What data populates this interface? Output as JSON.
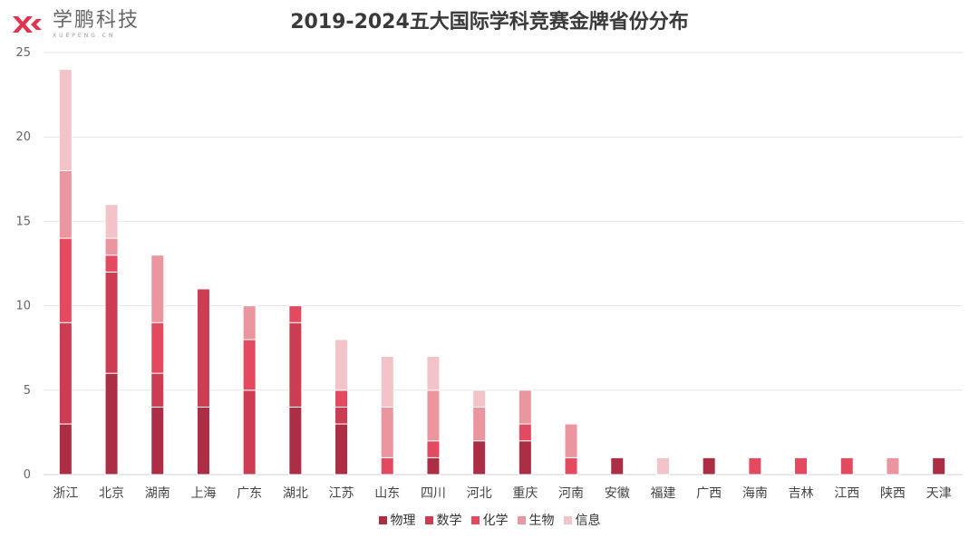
{
  "logo": {
    "brand_cn": "学鹏科技",
    "brand_en": "XUEPENG.CN"
  },
  "chart_data": {
    "type": "bar",
    "stacked": true,
    "title": "2019-2024五大国际学科竞赛金牌省份分布",
    "xlabel": "",
    "ylabel": "",
    "ylim": [
      0,
      25
    ],
    "yticks": [
      0,
      5,
      10,
      15,
      20,
      25
    ],
    "grid": true,
    "legend_position": "bottom",
    "categories": [
      "浙江",
      "北京",
      "湖南",
      "上海",
      "广东",
      "湖北",
      "江苏",
      "山东",
      "四川",
      "河北",
      "重庆",
      "河南",
      "安徽",
      "福建",
      "广西",
      "海南",
      "吉林",
      "江西",
      "陕西",
      "天津"
    ],
    "series": [
      {
        "name": "物理",
        "color": "#ab2e44",
        "values": [
          3,
          6,
          4,
          4,
          0,
          4,
          3,
          0,
          1,
          2,
          2,
          0,
          1,
          0,
          1,
          0,
          0,
          0,
          0,
          1
        ]
      },
      {
        "name": "数学",
        "color": "#cc3c52",
        "values": [
          6,
          6,
          2,
          7,
          5,
          5,
          1,
          0,
          0,
          0,
          0,
          0,
          0,
          0,
          0,
          0,
          0,
          0,
          0,
          0
        ]
      },
      {
        "name": "化学",
        "color": "#e44a5f",
        "values": [
          5,
          1,
          3,
          0,
          3,
          1,
          1,
          1,
          1,
          0,
          1,
          1,
          0,
          0,
          0,
          1,
          1,
          1,
          0,
          0
        ]
      },
      {
        "name": "生物",
        "color": "#eb959f",
        "values": [
          4,
          1,
          4,
          0,
          2,
          0,
          0,
          3,
          3,
          2,
          2,
          2,
          0,
          0,
          0,
          0,
          0,
          0,
          1,
          0
        ]
      },
      {
        "name": "信息",
        "color": "#f2c3c9",
        "values": [
          6,
          2,
          0,
          0,
          0,
          0,
          3,
          3,
          2,
          1,
          0,
          0,
          0,
          1,
          0,
          0,
          0,
          0,
          0,
          0
        ]
      }
    ]
  }
}
